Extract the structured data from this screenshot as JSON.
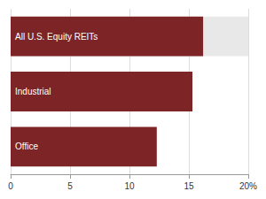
{
  "chart_data": {
    "type": "bar",
    "orientation": "horizontal",
    "categories": [
      "Office",
      "Industrial",
      "All U.S. Equity REITs"
    ],
    "series": [
      {
        "values": [
          null,
          null,
          20.0
        ],
        "color": "#E8E8E8"
      },
      {
        "values": [
          12.3,
          15.3,
          16.2
        ],
        "color": "#7D2427"
      }
    ],
    "xlim": [
      0,
      20
    ],
    "xticks": [
      0,
      5,
      10,
      15,
      {
        "value": 20,
        "label": "20%"
      }
    ],
    "grid": true,
    "tick_labels": "x"
  }
}
